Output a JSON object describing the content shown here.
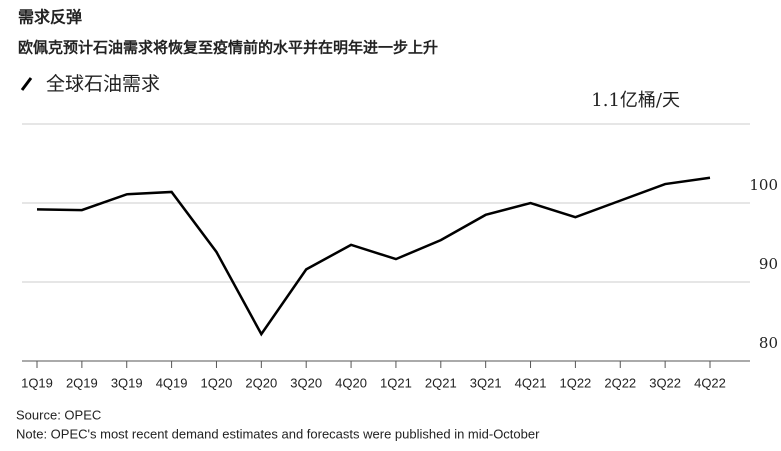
{
  "chart_data": {
    "type": "line",
    "title": "需求反弹",
    "subtitle": "欧佩克预计石油需求将恢复至疫情前的水平并在明年进一步上升",
    "unit_label": "1.1亿桶/天",
    "categories": [
      "1Q19",
      "2Q19",
      "3Q19",
      "4Q19",
      "1Q20",
      "2Q20",
      "3Q20",
      "4Q20",
      "1Q21",
      "2Q21",
      "3Q21",
      "4Q21",
      "1Q22",
      "2Q22",
      "3Q22",
      "4Q22"
    ],
    "series": [
      {
        "name": "全球石油需求",
        "color": "#000000",
        "values": [
          99.2,
          99.1,
          101.1,
          101.4,
          93.8,
          83.4,
          91.6,
          94.7,
          92.9,
          95.3,
          98.5,
          100.0,
          98.2,
          100.3,
          102.4,
          103.2
        ]
      }
    ],
    "ylim": [
      80,
      110
    ],
    "yticks": [
      80,
      90,
      100
    ],
    "grid": true,
    "source": "Source: OPEC",
    "note": "Note: OPEC's most recent demand estimates and forecasts were published in mid-October"
  }
}
